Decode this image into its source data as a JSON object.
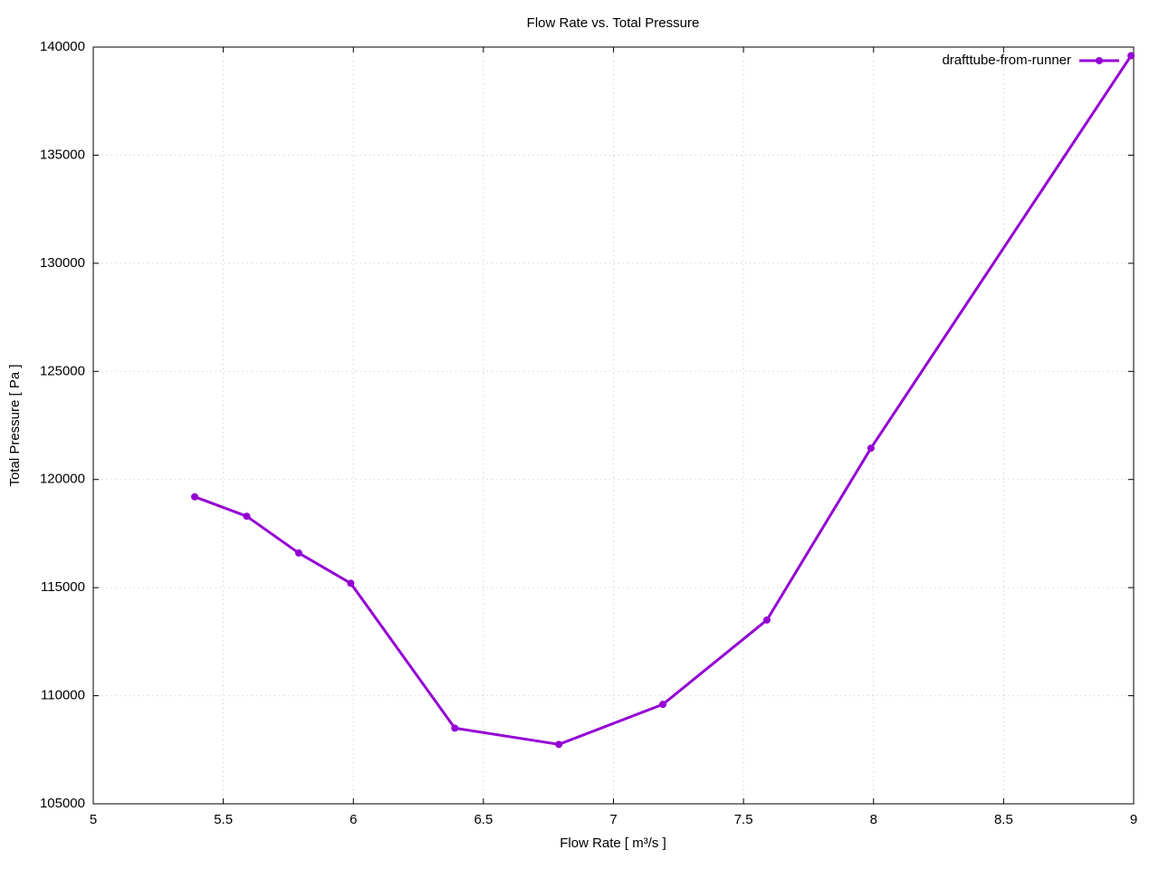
{
  "chart_data": {
    "type": "line",
    "title": "Flow Rate vs. Total Pressure",
    "x_label": "Flow Rate [ m³/s ]",
    "y_label": "Total Pressure [ Pa ]",
    "x": [
      5.39,
      5.59,
      5.79,
      5.99,
      6.39,
      6.79,
      7.19,
      7.59,
      7.99,
      8.99
    ],
    "series": [
      {
        "name": "drafttube-from-runner",
        "color": "#9400d3",
        "values": [
          119200,
          118300,
          116600,
          115200,
          108500,
          107750,
          109600,
          113500,
          121450,
          139600
        ]
      }
    ],
    "xlim": [
      5,
      9
    ],
    "xticks": [
      5,
      5.5,
      6,
      6.5,
      7,
      7.5,
      8,
      8.5,
      9
    ],
    "ylim": [
      105000,
      140000
    ],
    "yticks": [
      105000,
      110000,
      115000,
      120000,
      125000,
      130000,
      135000,
      140000
    ],
    "grid": true,
    "legend": "top-right",
    "markers": true
  }
}
